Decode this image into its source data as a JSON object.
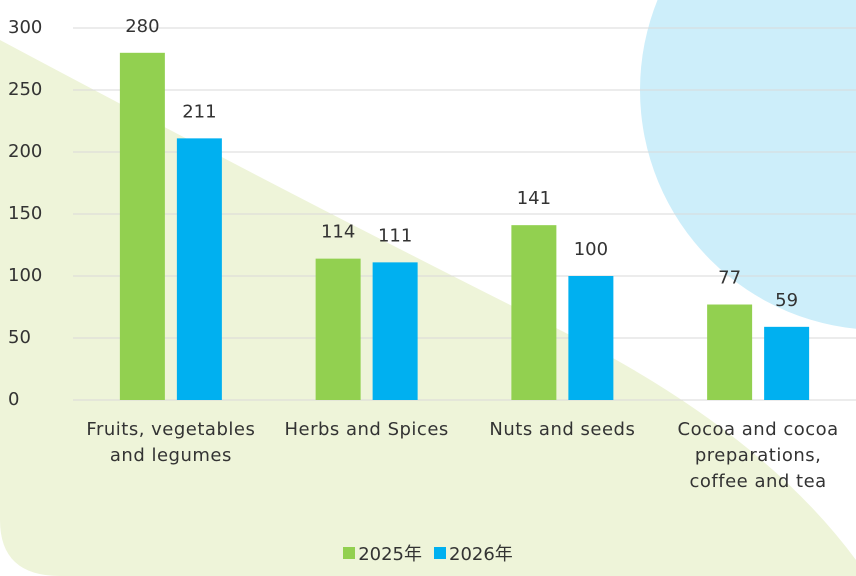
{
  "chart_data": {
    "type": "bar",
    "categories": [
      "Fruits, vegetables and legumes",
      "Herbs and Spices",
      "Nuts and seeds",
      "Cocoa and cocoa preparations, coffee and tea"
    ],
    "series": [
      {
        "name": "2025年",
        "color": "#92d050",
        "values": [
          280,
          114,
          141,
          77
        ]
      },
      {
        "name": "2026年",
        "color": "#00b0f0",
        "values": [
          211,
          111,
          100,
          59
        ]
      }
    ],
    "ylim": [
      0,
      300
    ],
    "yticks": [
      0,
      50,
      100,
      150,
      200,
      250,
      300
    ],
    "grid": true,
    "legend": "bottom"
  }
}
